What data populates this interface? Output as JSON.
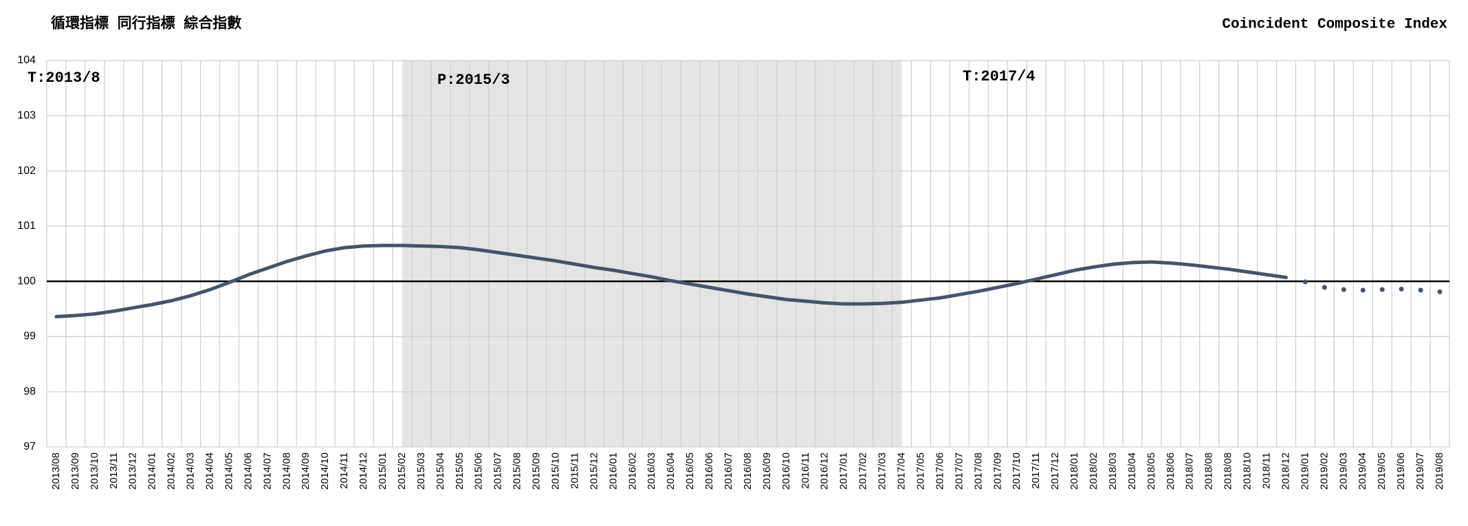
{
  "chart_data": {
    "type": "line",
    "title": "循環指標 同行指標 綜合指數",
    "subtitle": "Coincident Composite Index",
    "annotations": [
      "T:2013/8",
      "P:2015/3",
      "T:2017/4"
    ],
    "categories": [
      "2013/08",
      "2013/09",
      "2013/10",
      "2013/11",
      "2013/12",
      "2014/01",
      "2014/02",
      "2014/03",
      "2014/04",
      "2014/05",
      "2014/06",
      "2014/07",
      "2014/08",
      "2014/09",
      "2014/10",
      "2014/11",
      "2014/12",
      "2015/01",
      "2015/02",
      "2015/03",
      "2015/04",
      "2015/05",
      "2015/06",
      "2015/07",
      "2015/08",
      "2015/09",
      "2015/10",
      "2015/11",
      "2015/12",
      "2016/01",
      "2016/02",
      "2016/03",
      "2016/04",
      "2016/05",
      "2016/06",
      "2016/07",
      "2016/08",
      "2016/09",
      "2016/10",
      "2016/11",
      "2016/12",
      "2017/01",
      "2017/02",
      "2017/03",
      "2017/04",
      "2017/05",
      "2017/06",
      "2017/07",
      "2017/08",
      "2017/09",
      "2017/10",
      "2017/11",
      "2017/12",
      "2018/01",
      "2018/02",
      "2018/03",
      "2018/04",
      "2018/05",
      "2018/06",
      "2018/07",
      "2018/08",
      "2018/08",
      "2018/10",
      "2018/11",
      "2018/12",
      "2019/01",
      "2019/02",
      "2019/03",
      "2019/04",
      "2019/05",
      "2019/06",
      "2019/07",
      "2019/08"
    ],
    "series": [
      {
        "color": "#44546a",
        "style": "line",
        "values": [
          99.36,
          99.38,
          99.41,
          99.46,
          99.52,
          99.58,
          99.65,
          99.74,
          99.85,
          99.98,
          100.12,
          100.24,
          100.36,
          100.46,
          100.55,
          100.61,
          100.64,
          100.65,
          100.65,
          100.64,
          100.63,
          100.61,
          100.57,
          100.52,
          100.47,
          100.42,
          100.37,
          100.31,
          100.25,
          100.2,
          100.14,
          100.08,
          100.01,
          99.95,
          99.89,
          99.83,
          99.77,
          99.72,
          99.67,
          99.64,
          99.61,
          99.59,
          99.59,
          99.6,
          99.62,
          99.66,
          99.7,
          99.76,
          99.82,
          99.89,
          99.96,
          100.04,
          100.12,
          100.2,
          100.26,
          100.31,
          100.34,
          100.35,
          100.33,
          100.3,
          100.26,
          100.22,
          100.17,
          100.12,
          100.07,
          null,
          null,
          null,
          null,
          null,
          null,
          null,
          null
        ]
      },
      {
        "color": "#44546a",
        "style": "dots",
        "values": [
          null,
          null,
          null,
          null,
          null,
          null,
          null,
          null,
          null,
          null,
          null,
          null,
          null,
          null,
          null,
          null,
          null,
          null,
          null,
          null,
          null,
          null,
          null,
          null,
          null,
          null,
          null,
          null,
          null,
          null,
          null,
          null,
          null,
          null,
          null,
          null,
          null,
          null,
          null,
          null,
          null,
          null,
          null,
          null,
          null,
          null,
          null,
          null,
          null,
          null,
          null,
          null,
          null,
          null,
          null,
          null,
          null,
          null,
          null,
          null,
          null,
          null,
          null,
          null,
          null,
          99.99,
          99.89,
          99.85,
          99.84,
          99.85,
          99.86,
          99.84,
          99.81
        ]
      }
    ],
    "shaded_range": [
      "2015/02",
      "2017/04"
    ],
    "shade_color": "#e4e4e4",
    "reference_line": 100,
    "ylim": [
      97,
      104
    ],
    "yticks": [
      97,
      98,
      99,
      100,
      101,
      102,
      103,
      104
    ],
    "grid": true
  }
}
